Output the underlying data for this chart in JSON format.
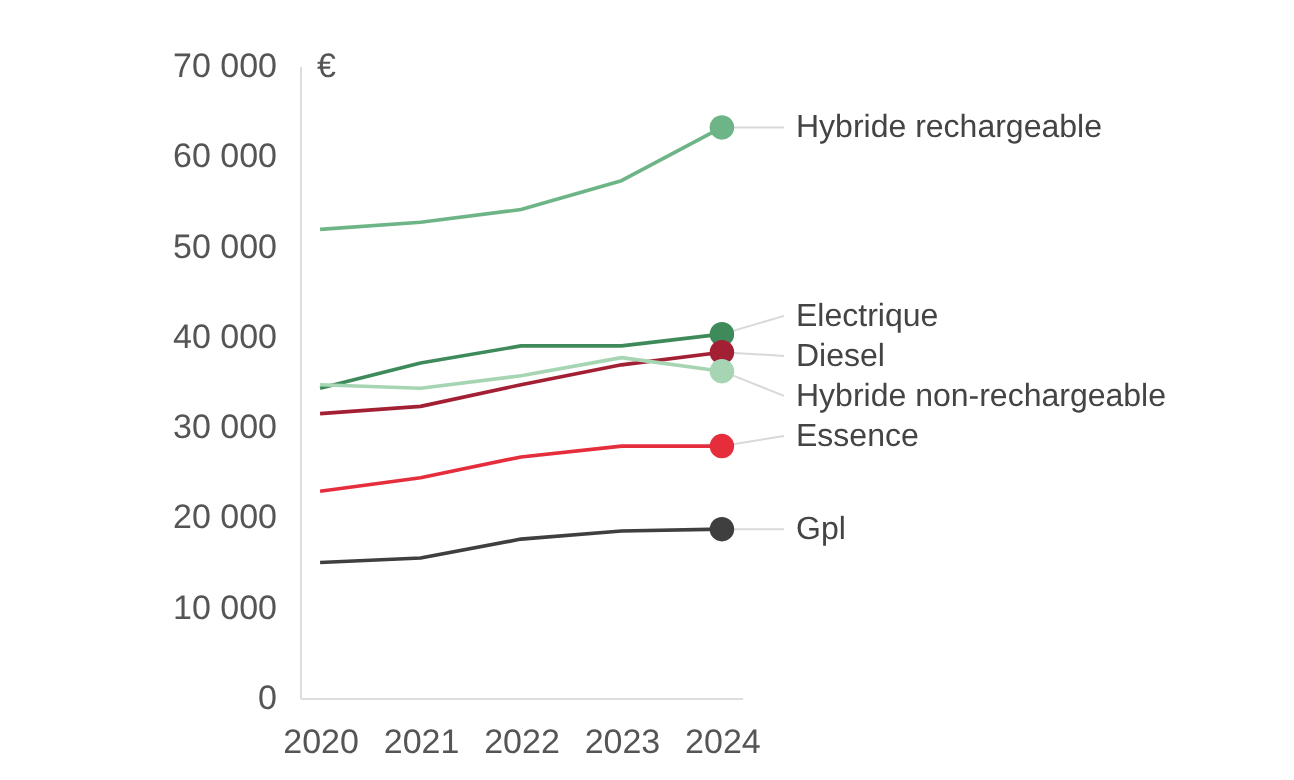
{
  "chart_data": {
    "type": "line",
    "ylabel": "€",
    "categories": [
      "2020",
      "2021",
      "2022",
      "2023",
      "2024"
    ],
    "series": [
      {
        "name": "Hybride rechargeable",
        "color": "#6db586",
        "values": [
          51900,
          52700,
          54100,
          57300,
          63200
        ]
      },
      {
        "name": "Electrique",
        "color": "#3e8a5a",
        "values": [
          34300,
          37100,
          39000,
          39000,
          40300
        ]
      },
      {
        "name": "Diesel",
        "color": "#a31f34",
        "values": [
          31500,
          32300,
          34700,
          36900,
          38300
        ]
      },
      {
        "name": "Hybride non-rechargeable",
        "color": "#a6d5b3",
        "values": [
          34700,
          34300,
          35700,
          37700,
          36200
        ]
      },
      {
        "name": "Essence",
        "color": "#e52d3b",
        "values": [
          22900,
          24400,
          26700,
          27900,
          27900
        ]
      },
      {
        "name": "Gpl",
        "color": "#3f3f3f",
        "values": [
          15000,
          15500,
          17600,
          18500,
          18700
        ]
      }
    ],
    "ylim": [
      0,
      70000
    ],
    "yticks": [
      {
        "value": 0,
        "label": "0"
      },
      {
        "value": 10000,
        "label": "10 000"
      },
      {
        "value": 20000,
        "label": "20 000"
      },
      {
        "value": 30000,
        "label": "30 000"
      },
      {
        "value": 40000,
        "label": "40 000"
      },
      {
        "value": 50000,
        "label": "50 000"
      },
      {
        "value": 60000,
        "label": "60 000"
      },
      {
        "value": 70000,
        "label": "70 000"
      }
    ],
    "grid": false,
    "line_style": "solid"
  }
}
